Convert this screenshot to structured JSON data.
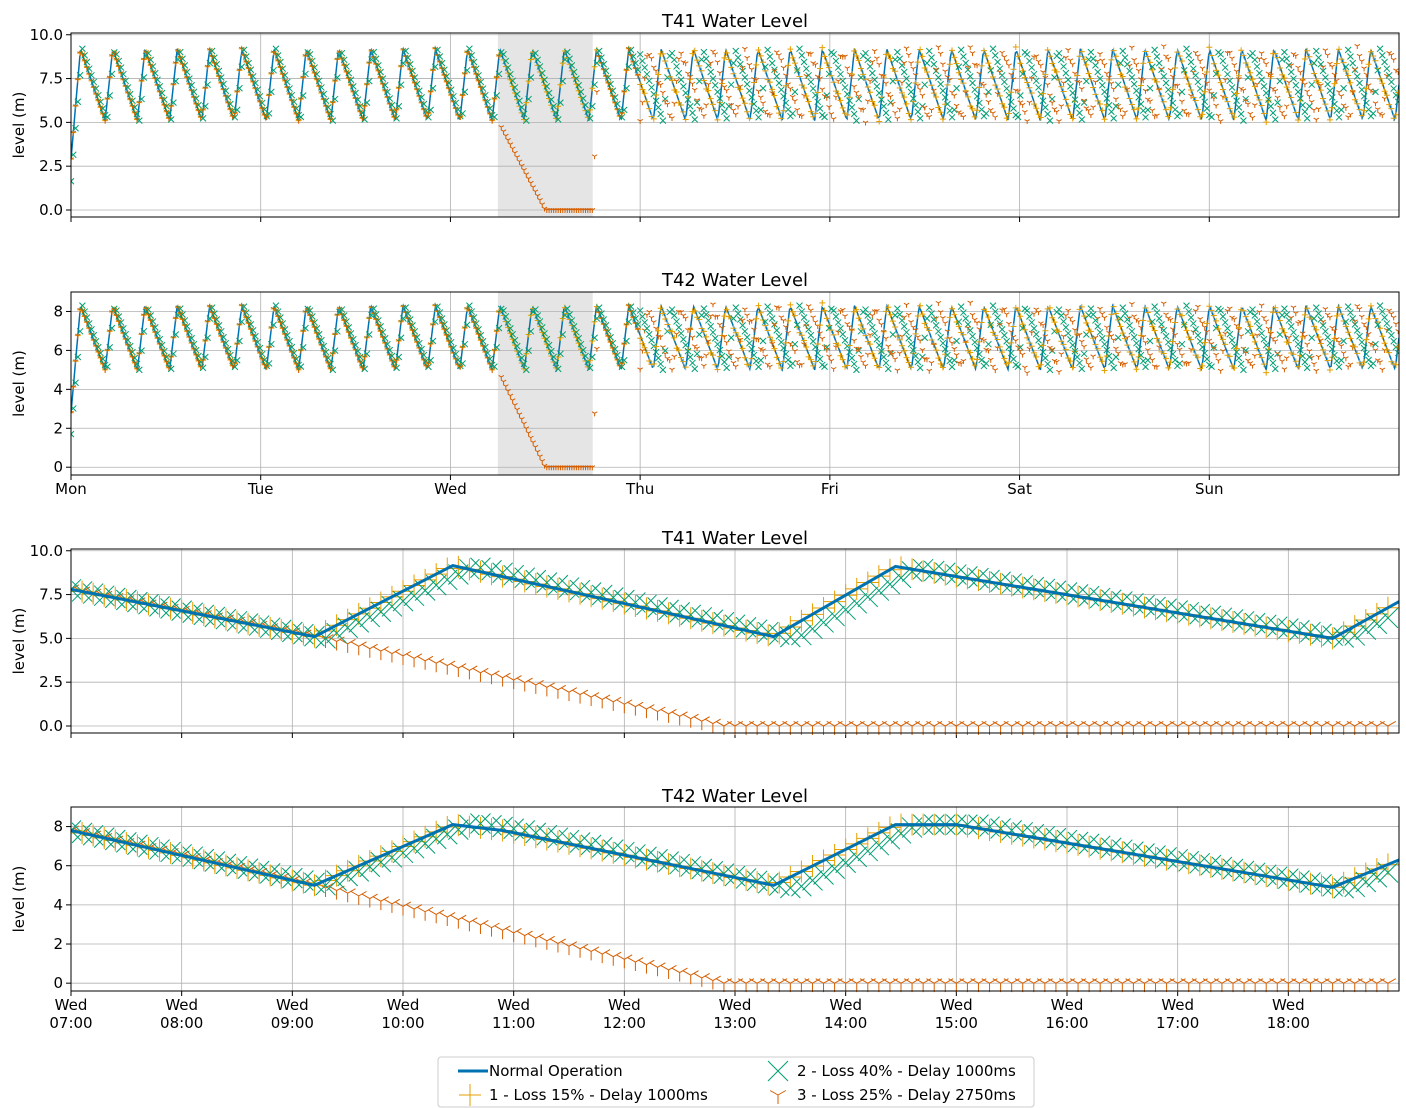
{
  "colors": {
    "normal": "#0072b2",
    "loss15": "#e69f00",
    "loss40": "#009e73",
    "loss25": "#d55e00",
    "attack_shade": "#e5e5e5",
    "grid": "#b0b0b0"
  },
  "legend": {
    "entries": [
      {
        "label": "Normal Operation",
        "marker": "line",
        "color": "#0072b2"
      },
      {
        "label": "1 - Loss 15% - Delay 1000ms",
        "marker": "plus",
        "color": "#e69f00"
      },
      {
        "label": "2 - Loss 40% - Delay 1000ms",
        "marker": "x",
        "color": "#009e73"
      },
      {
        "label": "3 - Loss 25% - Delay 2750ms",
        "marker": "tri",
        "color": "#d55e00"
      }
    ]
  },
  "chart_data": [
    {
      "type": "line",
      "title": "T41 Water Level",
      "ylabel": "level (m)",
      "xlabel": "",
      "x_unit": "days since Mon 00:00",
      "xlim": [
        0,
        7.0
      ],
      "ylim": [
        -0.4,
        10.1
      ],
      "yticks": [
        0.0,
        2.5,
        5.0,
        7.5,
        10.0
      ],
      "ytick_labels": [
        "0.0",
        "2.5",
        "5.0",
        "7.5",
        "10.0"
      ],
      "xticks": [
        0,
        1,
        2,
        3,
        4,
        5,
        6
      ],
      "xtick_labels": [],
      "shaded_region": [
        2.25,
        2.75
      ],
      "fill_min": 5.1,
      "fill_max": 9.2,
      "series": [
        {
          "name": "Normal Operation",
          "style": "line",
          "peaks": [
            [
              0.05,
              9.1
            ],
            [
              0.33,
              9.1
            ],
            [
              0.72,
              9.1
            ],
            [
              1.25,
              9.1
            ],
            [
              1.72,
              9.1
            ],
            [
              2.2,
              9.1
            ],
            [
              2.5,
              9.1
            ]
          ],
          "cycle_days": 0.2
        },
        {
          "name": "1 - Loss 15% - Delay 1000ms",
          "style": "plus"
        },
        {
          "name": "2 - Loss 40% - Delay 1000ms",
          "style": "x"
        },
        {
          "name": "3 - Loss 25% - Delay 2750ms",
          "style": "tri",
          "attack_drain_to_zero": [
            2.25,
            2.5,
            2.75
          ]
        }
      ]
    },
    {
      "type": "line",
      "title": "T42 Water Level",
      "ylabel": "level (m)",
      "xlabel": "",
      "x_unit": "days since Mon 00:00",
      "xlim": [
        0,
        7.0
      ],
      "ylim": [
        -0.4,
        9.0
      ],
      "yticks": [
        0,
        2,
        4,
        6,
        8
      ],
      "ytick_labels": [
        "0",
        "2",
        "4",
        "6",
        "8"
      ],
      "xticks": [
        0,
        1,
        2,
        3,
        4,
        5,
        6
      ],
      "xtick_labels": [
        "Mon",
        "Tue",
        "Wed",
        "Thu",
        "Fri",
        "Sat",
        "Sun"
      ],
      "shaded_region": [
        2.25,
        2.75
      ],
      "fill_min": 5.0,
      "fill_max": 8.3,
      "series": [
        {
          "name": "Normal Operation",
          "style": "line"
        },
        {
          "name": "1 - Loss 15% - Delay 1000ms",
          "style": "plus"
        },
        {
          "name": "2 - Loss 40% - Delay 1000ms",
          "style": "x"
        },
        {
          "name": "3 - Loss 25% - Delay 2750ms",
          "style": "tri"
        }
      ]
    },
    {
      "type": "line",
      "title": "T41 Water Level",
      "ylabel": "level (m)",
      "xlabel": "",
      "x_unit": "hours (Wed)",
      "xlim": [
        7.0,
        19.0
      ],
      "ylim": [
        -0.4,
        10.1
      ],
      "yticks": [
        0.0,
        2.5,
        5.0,
        7.5,
        10.0
      ],
      "ytick_labels": [
        "0.0",
        "2.5",
        "5.0",
        "7.5",
        "10.0"
      ],
      "xticks": [
        7,
        8,
        9,
        10,
        11,
        12,
        13,
        14,
        15,
        16,
        17,
        18
      ],
      "xtick_labels": [],
      "series": [
        {
          "name": "Normal Operation",
          "style": "line",
          "x": [
            7.0,
            9.2,
            10.45,
            13.35,
            14.45,
            18.4,
            19.0
          ],
          "y": [
            7.8,
            5.1,
            9.15,
            5.1,
            9.1,
            5.0,
            7.1
          ]
        },
        {
          "name": "1 - Loss 15% - Delay 1000ms",
          "style": "plus",
          "x": [
            7.0,
            9.2,
            10.45,
            13.35,
            14.45,
            18.4,
            19.0
          ],
          "y": [
            7.8,
            5.1,
            9.15,
            5.1,
            9.1,
            5.0,
            7.1
          ]
        },
        {
          "name": "2 - Loss 40% - Delay 1000ms",
          "style": "x",
          "x": [
            7.0,
            9.3,
            10.65,
            13.55,
            14.65,
            18.55,
            19.0
          ],
          "y": [
            7.8,
            5.0,
            9.1,
            5.0,
            9.0,
            5.0,
            6.5
          ]
        },
        {
          "name": "3 - Loss 25% - Delay 2750ms",
          "style": "tri",
          "x": [
            7.0,
            9.2,
            12.9,
            19.0
          ],
          "y": [
            7.8,
            5.1,
            0.0,
            0.0
          ]
        }
      ]
    },
    {
      "type": "line",
      "title": "T42 Water Level",
      "ylabel": "level (m)",
      "xlabel": "",
      "x_unit": "hours (Wed)",
      "xlim": [
        7.0,
        19.0
      ],
      "ylim": [
        -0.4,
        9.0
      ],
      "yticks": [
        0,
        2,
        4,
        6,
        8
      ],
      "ytick_labels": [
        "0",
        "2",
        "4",
        "6",
        "8"
      ],
      "xticks": [
        7,
        8,
        9,
        10,
        11,
        12,
        13,
        14,
        15,
        16,
        17,
        18
      ],
      "xtick_labels": [
        "Wed\n07:00",
        "Wed\n08:00",
        "Wed\n09:00",
        "Wed\n10:00",
        "Wed\n11:00",
        "Wed\n12:00",
        "Wed\n13:00",
        "Wed\n14:00",
        "Wed\n15:00",
        "Wed\n16:00",
        "Wed\n17:00",
        "Wed\n18:00"
      ],
      "series": [
        {
          "name": "Normal Operation",
          "style": "line",
          "x": [
            7.0,
            9.2,
            10.45,
            10.9,
            13.35,
            14.45,
            15.0,
            18.4,
            19.0
          ],
          "y": [
            7.8,
            5.0,
            8.1,
            7.8,
            5.0,
            8.1,
            8.1,
            4.9,
            6.3
          ]
        },
        {
          "name": "1 - Loss 15% - Delay 1000ms",
          "style": "plus",
          "x": [
            7.0,
            9.2,
            10.45,
            10.9,
            13.35,
            14.45,
            15.0,
            18.4,
            19.0
          ],
          "y": [
            7.8,
            5.0,
            8.1,
            7.8,
            5.0,
            8.1,
            8.1,
            4.9,
            6.3
          ]
        },
        {
          "name": "2 - Loss 40% - Delay 1000ms",
          "style": "x",
          "x": [
            7.0,
            9.3,
            10.65,
            11.1,
            13.55,
            14.65,
            15.2,
            18.55,
            19.0
          ],
          "y": [
            7.8,
            5.0,
            8.2,
            7.8,
            4.8,
            8.1,
            8.1,
            4.8,
            5.9
          ]
        },
        {
          "name": "3 - Loss 25% - Delay 2750ms",
          "style": "tri",
          "x": [
            7.0,
            9.2,
            12.9,
            19.0
          ],
          "y": [
            7.8,
            5.0,
            0.0,
            0.0
          ]
        }
      ]
    }
  ]
}
